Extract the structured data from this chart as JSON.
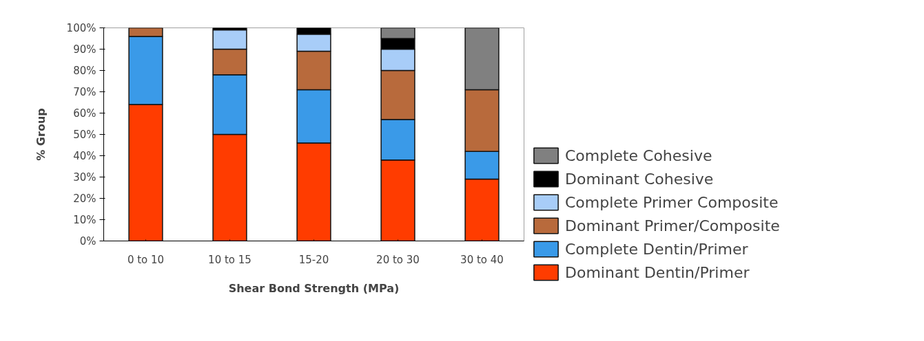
{
  "chart_data": {
    "type": "bar",
    "stacked": true,
    "xlabel": "Shear Bond Strength (MPa)",
    "ylabel": "% Group",
    "categories": [
      "0 to 10",
      "10 to 15",
      "15-20",
      "20 to 30",
      "30 to 40"
    ],
    "series": [
      {
        "name": "Dominant Dentin/Primer",
        "color": "#ff3c00",
        "values": [
          64,
          50,
          46,
          38,
          29
        ]
      },
      {
        "name": "Complete Dentin/Primer",
        "color": "#3a9ae8",
        "values": [
          32,
          28,
          25,
          19,
          13
        ]
      },
      {
        "name": "Dominant Primer/Composite",
        "color": "#b86a3c",
        "values": [
          4,
          12,
          18,
          23,
          29
        ]
      },
      {
        "name": "Complete Primer Composite",
        "color": "#a8cdf8",
        "values": [
          null,
          9,
          8,
          10,
          null
        ]
      },
      {
        "name": "Dominant Cohesive",
        "color": "#000000",
        "values": [
          null,
          1,
          3,
          5,
          null
        ]
      },
      {
        "name": "Complete Cohesive",
        "color": "#808080",
        "values": [
          null,
          null,
          null,
          5,
          29
        ]
      }
    ],
    "ylim": [
      0,
      100
    ],
    "yticks": [
      {
        "value": 0,
        "label": "0%"
      },
      {
        "value": 10,
        "label": "10%"
      },
      {
        "value": 20,
        "label": "20%"
      },
      {
        "value": 30,
        "label": "30%"
      },
      {
        "value": 40,
        "label": "40%"
      },
      {
        "value": 50,
        "label": "50%"
      },
      {
        "value": 60,
        "label": "60%"
      },
      {
        "value": 70,
        "label": "70%"
      },
      {
        "value": 80,
        "label": "80%"
      },
      {
        "value": 90,
        "label": "90%"
      },
      {
        "value": 100,
        "label": "100%"
      }
    ],
    "grid": false,
    "legend": "right"
  }
}
